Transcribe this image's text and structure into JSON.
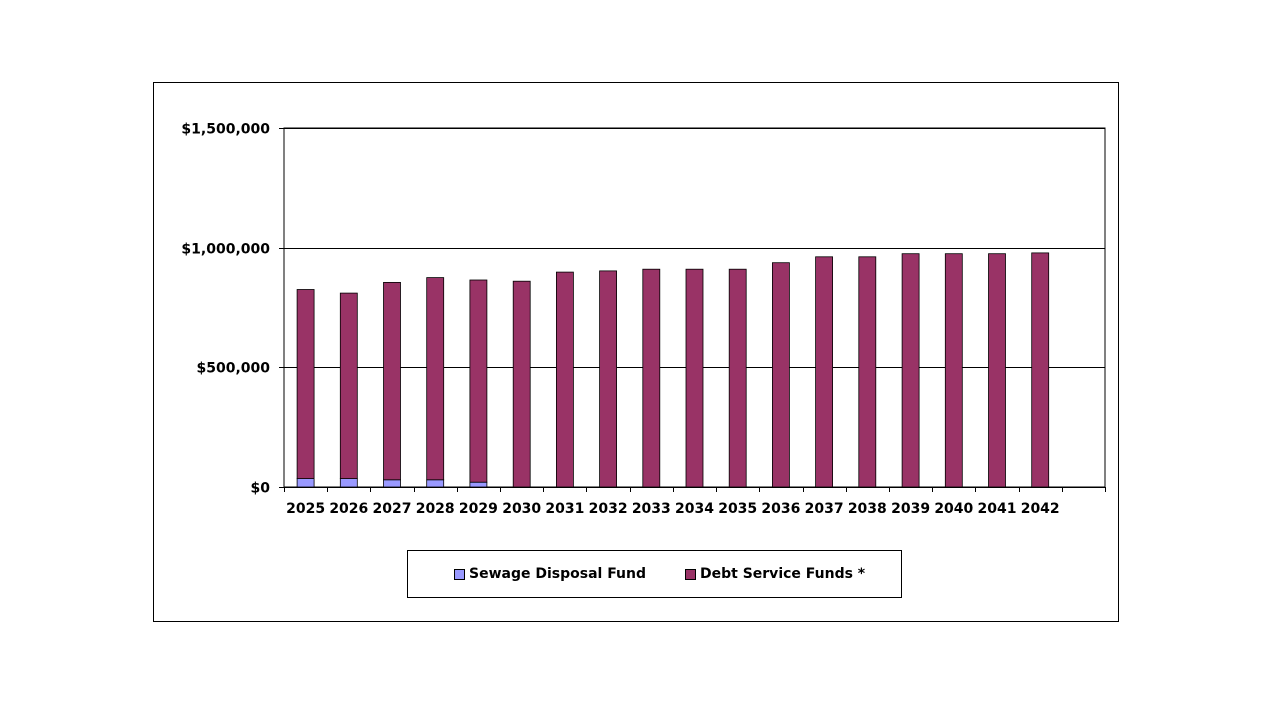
{
  "chart_data": {
    "type": "bar",
    "stacked": true,
    "categories": [
      "2025",
      "2026",
      "2027",
      "2028",
      "2029",
      "2030",
      "2031",
      "2032",
      "2033",
      "2034",
      "2035",
      "2036",
      "2037",
      "2038",
      "2039",
      "2040",
      "2041",
      "2042"
    ],
    "series": [
      {
        "name": "Sewage Disposal Fund",
        "color": "#9999ff",
        "values": [
          35000,
          35000,
          30000,
          30000,
          20000,
          0,
          0,
          0,
          0,
          0,
          0,
          0,
          0,
          0,
          0,
          0,
          0,
          0
        ]
      },
      {
        "name": "Debt Service Funds *",
        "color": "#993366",
        "values": [
          790000,
          775000,
          825000,
          845000,
          845000,
          860000,
          898000,
          903000,
          910000,
          910000,
          910000,
          937000,
          962000,
          962000,
          975000,
          975000,
          975000,
          978000
        ]
      }
    ],
    "yticks": [
      "$0",
      "$500,000",
      "$1,000,000",
      "$1,500,000"
    ],
    "ylim": [
      0,
      1500000
    ],
    "grid": true,
    "legend_position": "bottom"
  }
}
